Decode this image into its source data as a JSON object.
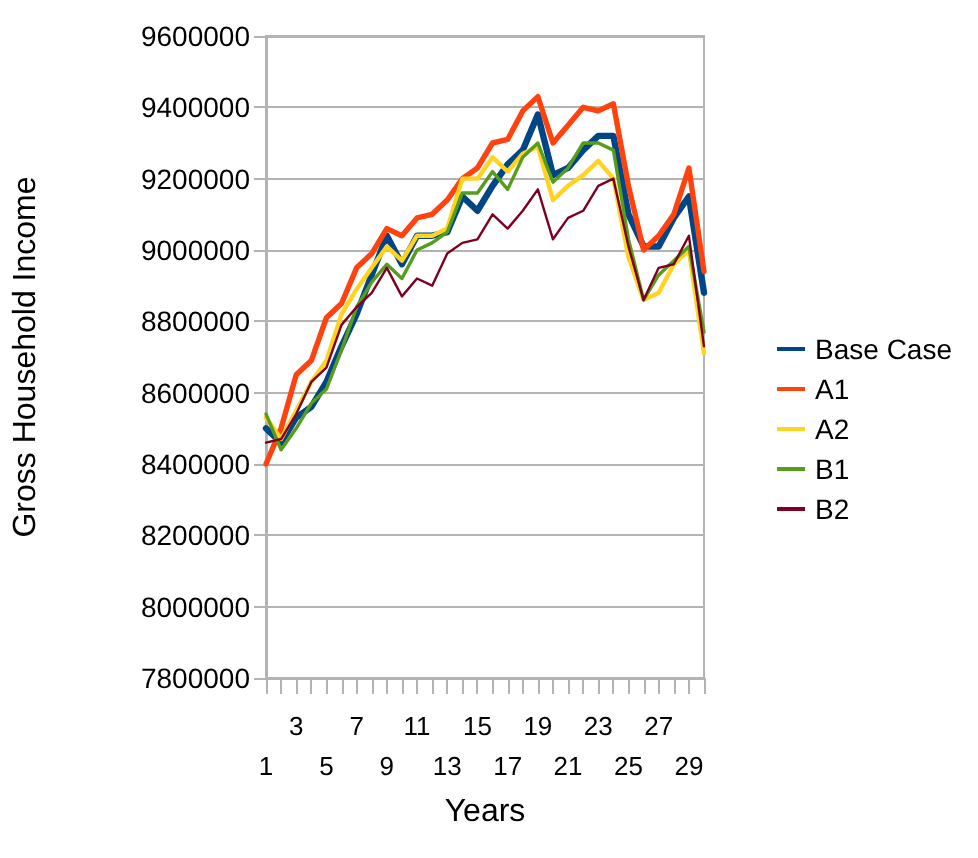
{
  "chart_data": {
    "type": "line",
    "xlabel": "Years",
    "ylabel": "Gross Household Income",
    "categories": [
      "1",
      null,
      "3",
      null,
      "5",
      null,
      "7",
      null,
      "9",
      null,
      "11",
      null,
      "13",
      null,
      "15",
      null,
      "17",
      null,
      "19",
      null,
      "21",
      null,
      "23",
      null,
      "25",
      null,
      "27",
      null,
      "29",
      null
    ],
    "series": [
      {
        "name": "Base Case",
        "color": "#004586",
        "values": [
          8500000,
          8460000,
          8530000,
          8560000,
          8630000,
          8730000,
          8820000,
          8930000,
          9040000,
          8960000,
          9040000,
          9040000,
          9050000,
          9150000,
          9110000,
          9180000,
          9240000,
          9280000,
          9380000,
          9210000,
          9230000,
          9280000,
          9320000,
          9320000,
          9100000,
          9010000,
          9010000,
          9090000,
          9150000,
          8880000
        ]
      },
      {
        "name": "A1",
        "color": "#ff420e",
        "values": [
          8400000,
          8500000,
          8650000,
          8690000,
          8810000,
          8850000,
          8950000,
          8990000,
          9060000,
          9040000,
          9090000,
          9100000,
          9140000,
          9200000,
          9230000,
          9300000,
          9310000,
          9390000,
          9430000,
          9300000,
          9350000,
          9400000,
          9390000,
          9410000,
          9180000,
          9000000,
          9040000,
          9100000,
          9230000,
          8940000
        ]
      },
      {
        "name": "A2",
        "color": "#ffd320",
        "values": [
          8530000,
          8470000,
          8550000,
          8630000,
          8690000,
          8820000,
          8890000,
          8950000,
          9010000,
          8970000,
          9040000,
          9040000,
          9060000,
          9200000,
          9200000,
          9260000,
          9220000,
          9270000,
          9290000,
          9140000,
          9180000,
          9210000,
          9250000,
          9200000,
          8980000,
          8860000,
          8880000,
          8960000,
          9000000,
          8710000
        ]
      },
      {
        "name": "B1",
        "color": "#579d1c",
        "values": [
          8540000,
          8440000,
          8500000,
          8570000,
          8610000,
          8720000,
          8840000,
          8910000,
          8960000,
          8920000,
          9000000,
          9020000,
          9050000,
          9160000,
          9160000,
          9220000,
          9170000,
          9260000,
          9300000,
          9190000,
          9230000,
          9300000,
          9300000,
          9280000,
          9030000,
          8860000,
          8930000,
          8970000,
          9010000,
          8770000
        ]
      },
      {
        "name": "B2",
        "color": "#7e0021",
        "values": [
          8460000,
          8470000,
          8540000,
          8630000,
          8670000,
          8790000,
          8840000,
          8880000,
          8950000,
          8870000,
          8920000,
          8900000,
          8990000,
          9020000,
          9030000,
          9100000,
          9060000,
          9110000,
          9170000,
          9030000,
          9090000,
          9110000,
          9180000,
          9200000,
          9010000,
          8860000,
          8950000,
          8960000,
          9040000,
          8730000
        ]
      }
    ],
    "ylim": [
      7800000,
      9600000
    ],
    "yticks": [
      7800000,
      8000000,
      8200000,
      8400000,
      8600000,
      8800000,
      9000000,
      9200000,
      9400000,
      9600000
    ],
    "grid": "y",
    "legend": "right",
    "marker": "none",
    "line_style": "solid"
  }
}
